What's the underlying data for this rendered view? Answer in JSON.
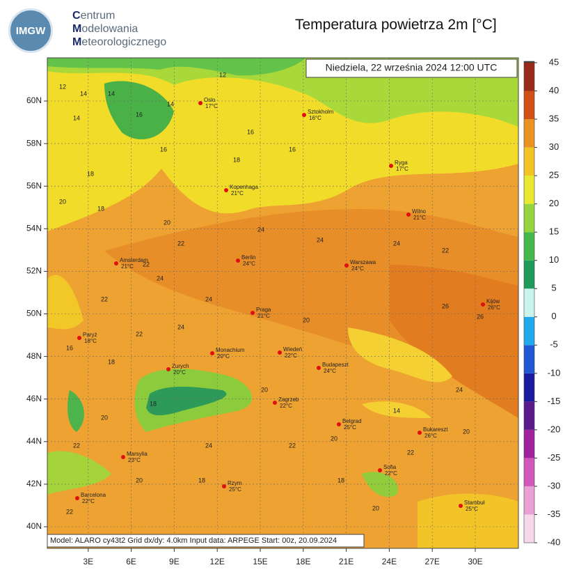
{
  "header": {
    "logo": "IMGW",
    "org_lines": [
      "Centrum",
      "Modelowania",
      "Meteorologicznego"
    ],
    "title": "Temperatura powietrza 2m [°C]"
  },
  "map": {
    "date": "Niedziela, 22 września 2024 12:00 UTC",
    "footer": "Model: ALARO cy43t2  Grid dx/dy: 4.0km  Input data: ARPEGE  Start: 00z, 20.09.2024",
    "lon_ticks": [
      {
        "value": 3,
        "label": "3E"
      },
      {
        "value": 6,
        "label": "6E"
      },
      {
        "value": 9,
        "label": "9E"
      },
      {
        "value": 12,
        "label": "12E"
      },
      {
        "value": 15,
        "label": "15E"
      },
      {
        "value": 18,
        "label": "18E"
      },
      {
        "value": 21,
        "label": "21E"
      },
      {
        "value": 24,
        "label": "24E"
      },
      {
        "value": 27,
        "label": "27E"
      },
      {
        "value": 30,
        "label": "30E"
      }
    ],
    "lat_ticks": [
      {
        "value": 60,
        "label": "60N"
      },
      {
        "value": 58,
        "label": "58N"
      },
      {
        "value": 56,
        "label": "56N"
      },
      {
        "value": 54,
        "label": "54N"
      },
      {
        "value": 52,
        "label": "52N"
      },
      {
        "value": 50,
        "label": "50N"
      },
      {
        "value": 48,
        "label": "48N"
      },
      {
        "value": 46,
        "label": "46N"
      },
      {
        "value": 44,
        "label": "44N"
      },
      {
        "value": 42,
        "label": "42N"
      },
      {
        "value": 40,
        "label": "40N"
      }
    ],
    "cities": [
      {
        "name": "Oslo",
        "temp": "17°C"
      },
      {
        "name": "Sztokholm",
        "temp": "16°C"
      },
      {
        "name": "Ryga",
        "temp": "17°C"
      },
      {
        "name": "Kopenhaga",
        "temp": "21°C"
      },
      {
        "name": "Wilno",
        "temp": "21°C"
      },
      {
        "name": "Amsterdam",
        "temp": "21°C"
      },
      {
        "name": "Berlin",
        "temp": "24°C"
      },
      {
        "name": "Warszawa",
        "temp": "24°C"
      },
      {
        "name": "Kijów",
        "temp": "26°C"
      },
      {
        "name": "Praga",
        "temp": "21°C"
      },
      {
        "name": "Paryż",
        "temp": "18°C"
      },
      {
        "name": "Monachium",
        "temp": "20°C"
      },
      {
        "name": "Wiedeń",
        "temp": "22°C"
      },
      {
        "name": "Zurych",
        "temp": "20°C"
      },
      {
        "name": "Budapeszt",
        "temp": "24°C"
      },
      {
        "name": "Zagrzeb",
        "temp": "22°C"
      },
      {
        "name": "Belgrad",
        "temp": "25°C"
      },
      {
        "name": "Bukareszt",
        "temp": "26°C"
      },
      {
        "name": "Marsylia",
        "temp": "23°C"
      },
      {
        "name": "Sofia",
        "temp": "22°C"
      },
      {
        "name": "Barcelona",
        "temp": "22°C"
      },
      {
        "name": "Rzym",
        "temp": "25°C"
      },
      {
        "name": "Stambuł",
        "temp": "25°C"
      }
    ],
    "contour_labels": [
      12,
      14,
      12,
      14,
      16,
      14,
      16,
      14,
      16,
      18,
      16,
      18,
      20,
      18,
      20,
      22,
      22,
      24,
      24,
      24,
      24,
      22,
      22,
      24,
      26,
      24,
      22,
      20,
      18,
      16,
      20,
      14,
      18,
      20,
      22,
      24,
      22,
      20,
      18,
      20,
      22,
      18,
      22,
      20,
      24,
      26,
      20
    ]
  },
  "colorbar": {
    "lim": [
      -40,
      45
    ],
    "ticks": [
      45,
      40,
      35,
      30,
      25,
      20,
      15,
      10,
      5,
      0,
      -5,
      -10,
      -15,
      -20,
      -25,
      -30,
      -35,
      -40
    ],
    "colors": [
      "#f6d8ea",
      "#eaa0d4",
      "#d058bc",
      "#a0229e",
      "#5a1a8c",
      "#1a1aa0",
      "#2058d4",
      "#20a8ea",
      "#c8f4ec",
      "#1e9a5a",
      "#44b84a",
      "#94d43e",
      "#e8e830",
      "#f2c424",
      "#ea9222",
      "#d05018",
      "#9a2a18"
    ]
  }
}
